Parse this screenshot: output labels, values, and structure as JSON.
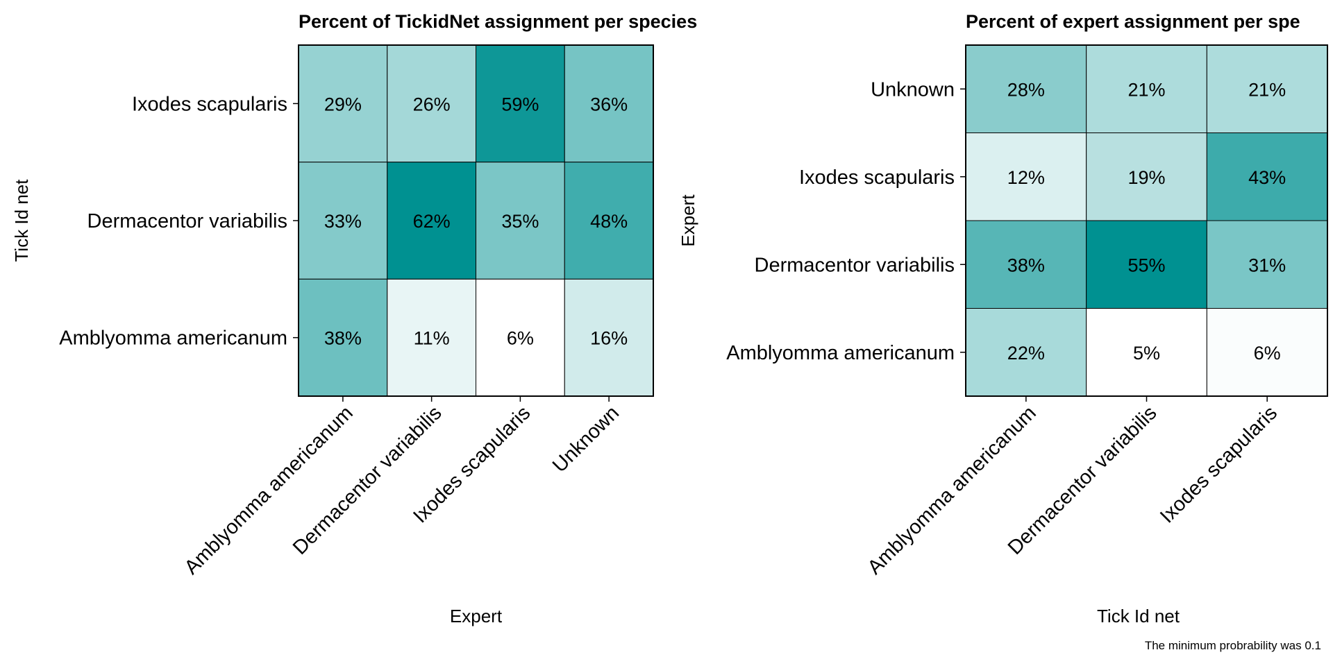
{
  "chart_data": [
    {
      "type": "heatmap",
      "title": "Percent of TickidNet assignment per species",
      "xlabel": "Expert",
      "ylabel": "Tick Id net",
      "x_categories": [
        "Amblyomma americanum",
        "Dermacentor variabilis",
        "Ixodes scapularis",
        "Unknown"
      ],
      "y_categories": [
        "Ixodes scapularis",
        "Dermacentor variabilis",
        "Amblyomma americanum"
      ],
      "values": [
        [
          29,
          26,
          59,
          36
        ],
        [
          33,
          62,
          35,
          48
        ],
        [
          38,
          11,
          6,
          16
        ]
      ],
      "labels": [
        [
          "29%",
          "26%",
          "59%",
          "36%"
        ],
        [
          "33%",
          "62%",
          "35%",
          "48%"
        ],
        [
          "38%",
          "11%",
          "6%",
          "16%"
        ]
      ],
      "color_low": "#ffffff",
      "color_high": "#009191"
    },
    {
      "type": "heatmap",
      "title": "Percent of expert assignment per spe",
      "xlabel": "Tick Id net",
      "ylabel": "Expert",
      "x_categories": [
        "Amblyomma americanum",
        "Dermacentor variabilis",
        "Ixodes scapularis"
      ],
      "y_categories": [
        "Unknown",
        "Ixodes scapularis",
        "Dermacentor variabilis",
        "Amblyomma americanum"
      ],
      "values": [
        [
          28,
          21,
          21
        ],
        [
          12,
          19,
          43
        ],
        [
          38,
          55,
          31
        ],
        [
          22,
          5,
          6
        ]
      ],
      "labels": [
        [
          "28%",
          "21%",
          "21%"
        ],
        [
          "12%",
          "19%",
          "43%"
        ],
        [
          "38%",
          "55%",
          "31%"
        ],
        [
          "22%",
          "5%",
          "6%"
        ]
      ],
      "color_low": "#ffffff",
      "color_high": "#009191"
    }
  ],
  "caption": "The minimum probrability was 0.1"
}
